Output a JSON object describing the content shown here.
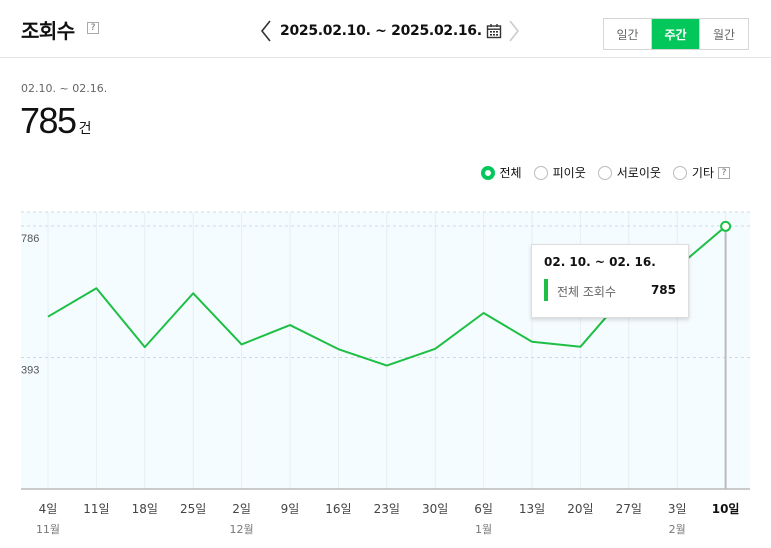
{
  "header": {
    "title": "조회수",
    "help": "?",
    "date_range": "2025.02.10. ~ 2025.02.16.",
    "period_tabs": [
      {
        "label": "일간",
        "active": false
      },
      {
        "label": "주간",
        "active": true
      },
      {
        "label": "월간",
        "active": false
      }
    ]
  },
  "summary": {
    "period": "02.10. ~ 02.16.",
    "value": "785",
    "unit": "건"
  },
  "legend": {
    "items": [
      {
        "label": "전체",
        "checked": true
      },
      {
        "label": "피이웃",
        "checked": false
      },
      {
        "label": "서로이웃",
        "checked": false
      },
      {
        "label": "기타",
        "checked": false
      }
    ],
    "help": "?"
  },
  "tooltip": {
    "title": "02. 10. ~ 02. 16.",
    "label": "전체 조회수",
    "value": "785"
  },
  "colors": {
    "accent": "#03c75a",
    "line": "#1dbf45",
    "plot_bg": "#f5fcff"
  },
  "chart_data": {
    "type": "line",
    "x": [
      "4일",
      "11일",
      "18일",
      "25일",
      "2일",
      "9일",
      "16일",
      "23일",
      "30일",
      "6일",
      "13일",
      "20일",
      "27일",
      "3일",
      "10일"
    ],
    "month_labels": [
      {
        "index": 0,
        "label": "11월"
      },
      {
        "index": 4,
        "label": "12월"
      },
      {
        "index": 9,
        "label": "1월"
      },
      {
        "index": 13,
        "label": "2월"
      }
    ],
    "highlight_index": 14,
    "series": [
      {
        "values": [
          515,
          600,
          424,
          585,
          432,
          490,
          418,
          369,
          419,
          526,
          440,
          425,
          592,
          662,
          785
        ]
      }
    ],
    "yticks": [
      393,
      786
    ],
    "ylim": [
      0,
      786
    ],
    "grid": "dashed horizontal"
  }
}
